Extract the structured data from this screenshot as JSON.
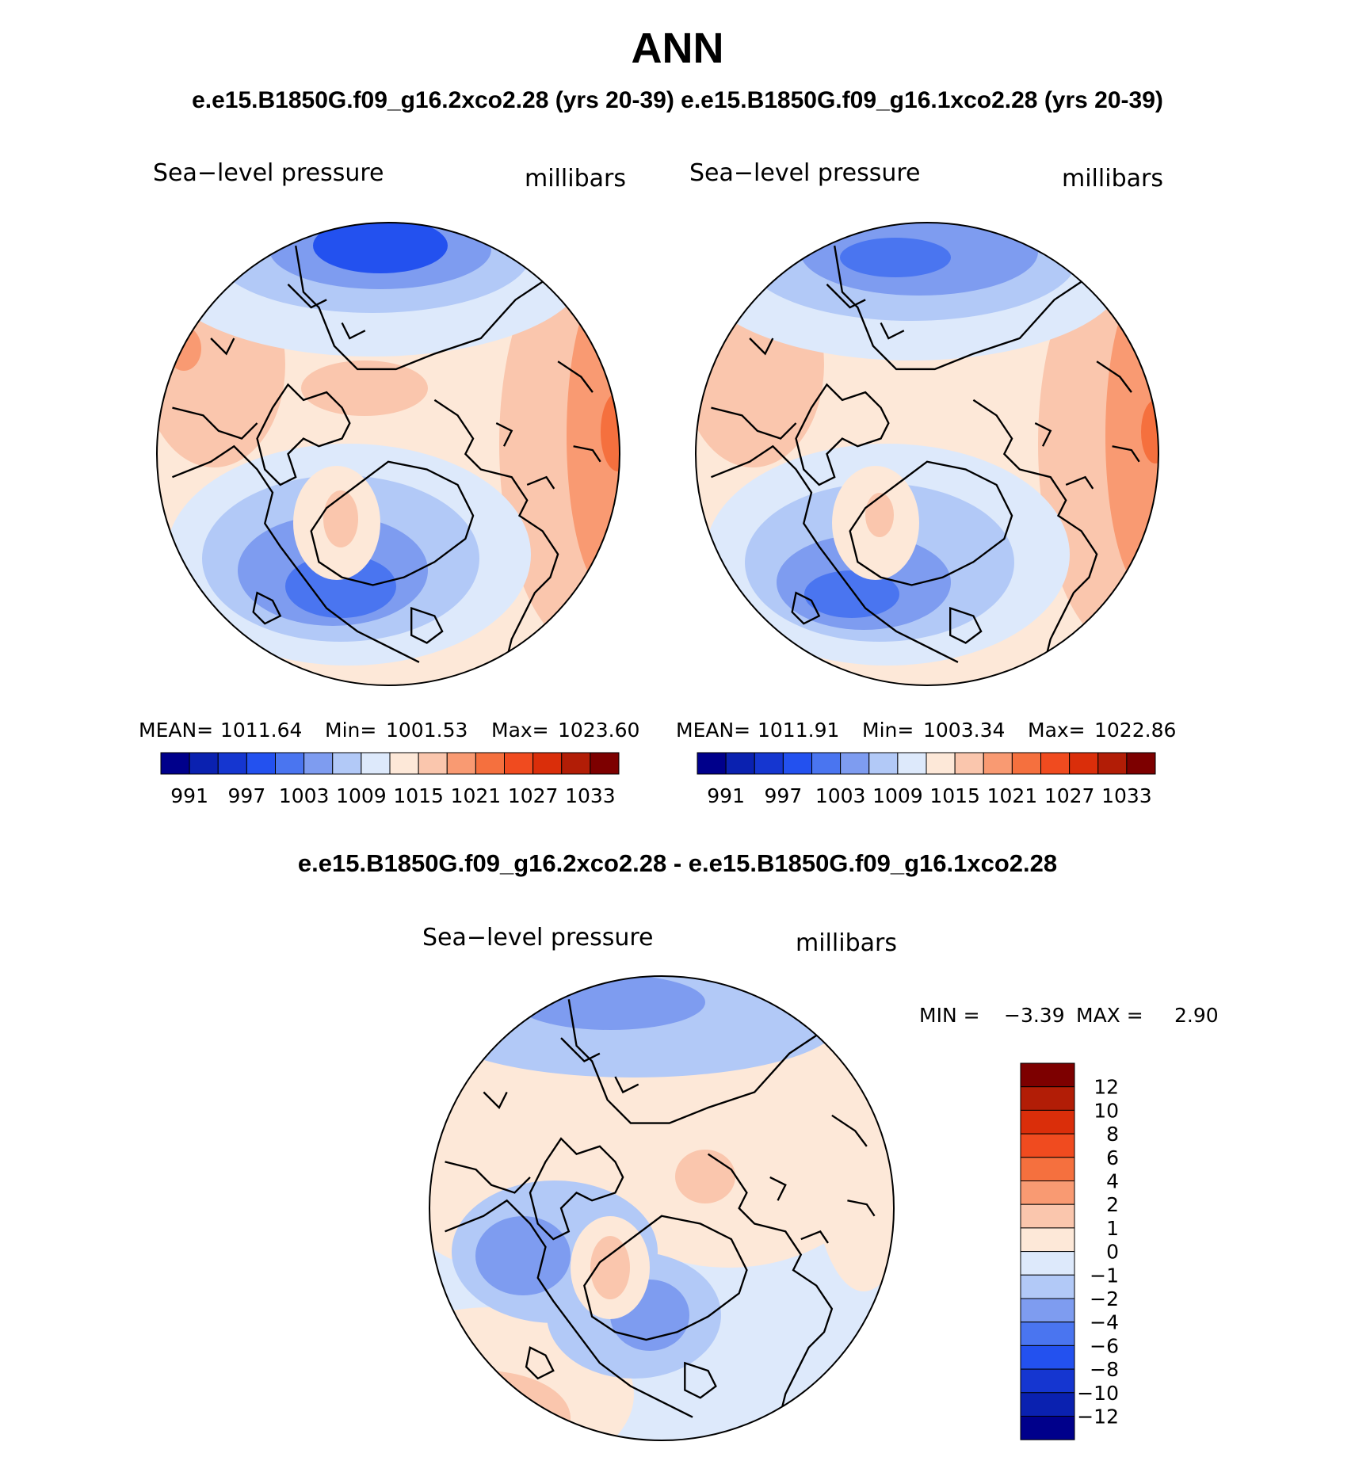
{
  "title": "ANN",
  "subtitle": "e.e15.B1850G.f09_g16.2xco2.28 (yrs 20-39) e.e15.B1850G.f09_g16.1xco2.28 (yrs 20-39)",
  "diff_title": "e.e15.B1850G.f09_g16.2xco2.28 - e.e15.B1850G.f09_g16.1xco2.28",
  "panels": [
    {
      "variable": "Sea−level pressure",
      "units": "millibars",
      "stats": {
        "mean_label": "MEAN=",
        "mean": "1011.64",
        "min_label": "Min=",
        "min": "1001.53",
        "max_label": "Max=",
        "max": "1023.60"
      }
    },
    {
      "variable": "Sea−level pressure",
      "units": "millibars",
      "stats": {
        "mean_label": "MEAN=",
        "mean": "1011.91",
        "min_label": "Min=",
        "min": "1003.34",
        "max_label": "Max=",
        "max": "1022.86"
      }
    },
    {
      "variable": "Sea−level pressure",
      "units": "millibars",
      "stats": {
        "min_label": "MIN =",
        "min": "−3.39",
        "max_label": "MAX =",
        "max": "2.90"
      }
    }
  ],
  "abs_colorbar": {
    "colors": [
      "#00008b",
      "#0a21b0",
      "#1536d0",
      "#2351ef",
      "#4a75f0",
      "#7e9cf0",
      "#b2c9f7",
      "#dde9fb",
      "#fde8d8",
      "#fac6ad",
      "#f99a72",
      "#f5703e",
      "#f04b1f",
      "#da2e0a",
      "#b21d06",
      "#7d0000"
    ],
    "labels": [
      "991",
      "997",
      "1003",
      "1009",
      "1015",
      "1021",
      "1027",
      "1033"
    ]
  },
  "diff_colorbar": {
    "colors": [
      "#00008b",
      "#0a21b0",
      "#1536d0",
      "#2351ef",
      "#4a75f0",
      "#7e9cf0",
      "#b2c9f7",
      "#dde9fb",
      "#fde8d8",
      "#fac6ad",
      "#f99a72",
      "#f5703e",
      "#f04b1f",
      "#da2e0a",
      "#b21d06",
      "#7d0000"
    ],
    "labels": [
      "12",
      "10",
      "8",
      "6",
      "4",
      "2",
      "1",
      "0",
      "−1",
      "−2",
      "−4",
      "−6",
      "−8",
      "−10",
      "−12"
    ]
  },
  "map_colors": {
    "c_n8": "#1536d0",
    "c_n6": "#2351ef",
    "c_n5": "#4a75f0",
    "c_n4": "#7e9cf0",
    "c_n3": "#b2c9f7",
    "c_n2": "#dde9fb",
    "c_p1": "#fde8d8",
    "c_p2": "#fac6ad",
    "c_p3": "#f99a72",
    "c_p4": "#f5703e",
    "coast": "#000000",
    "rim": "#000000"
  }
}
